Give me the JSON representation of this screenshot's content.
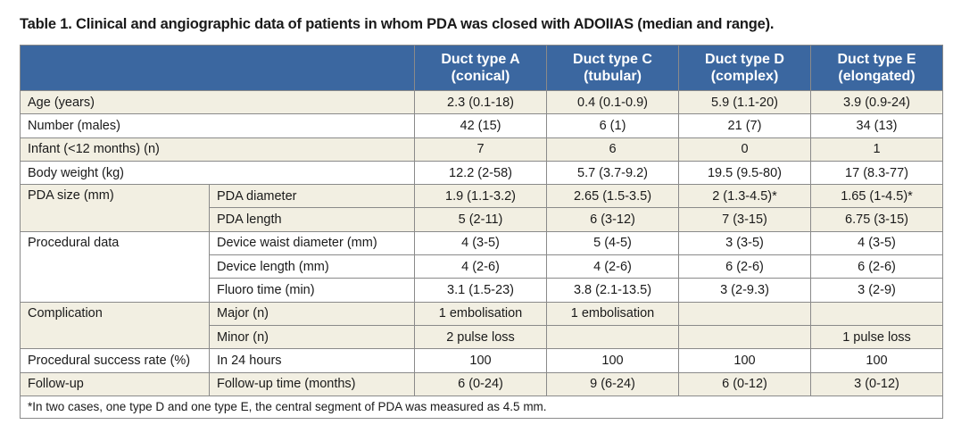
{
  "title": "Table 1. Clinical and angiographic data of patients in whom PDA was closed with ADOIIAS (median and range).",
  "header": {
    "columns": [
      {
        "line1": "Duct type A",
        "line2": "(conical)"
      },
      {
        "line1": "Duct type C",
        "line2": "(tubular)"
      },
      {
        "line1": "Duct type D",
        "line2": "(complex)"
      },
      {
        "line1": "Duct type E",
        "line2": "(elongated)"
      }
    ]
  },
  "rows": {
    "age": {
      "label": "Age (years)",
      "values": [
        "2.3 (0.1-18)",
        "0.4 (0.1-0.9)",
        "5.9 (1.1-20)",
        "3.9 (0.9-24)"
      ]
    },
    "number": {
      "label": "Number (males)",
      "values": [
        "42 (15)",
        "6 (1)",
        "21 (7)",
        "34 (13)"
      ]
    },
    "infant": {
      "label": "Infant (<12 months) (n)",
      "values": [
        "7",
        "6",
        "0",
        "1"
      ]
    },
    "weight": {
      "label": "Body weight (kg)",
      "values": [
        "12.2 (2-58)",
        "5.7 (3.7-9.2)",
        "19.5 (9.5-80)",
        "17 (8.3-77)"
      ]
    },
    "pda_size": {
      "label": "PDA size (mm)",
      "diameter": {
        "label": "PDA diameter",
        "values": [
          "1.9 (1.1-3.2)",
          "2.65 (1.5-3.5)",
          "2 (1.3-4.5)*",
          "1.65 (1-4.5)*"
        ]
      },
      "length": {
        "label": "PDA length",
        "values": [
          "5 (2-11)",
          "6 (3-12)",
          "7 (3-15)",
          "6.75 (3-15)"
        ]
      }
    },
    "procedural": {
      "label": "Procedural data",
      "waist": {
        "label": "Device waist diameter (mm)",
        "values": [
          "4 (3-5)",
          "5 (4-5)",
          "3 (3-5)",
          "4 (3-5)"
        ]
      },
      "device_length": {
        "label": "Device length (mm)",
        "values": [
          "4 (2-6)",
          "4 (2-6)",
          "6 (2-6)",
          "6 (2-6)"
        ]
      },
      "fluoro": {
        "label": "Fluoro time (min)",
        "values": [
          "3.1 (1.5-23)",
          "3.8 (2.1-13.5)",
          "3 (2-9.3)",
          "3 (2-9)"
        ]
      }
    },
    "complication": {
      "label": "Complication",
      "major": {
        "label": "Major (n)",
        "values": [
          "1 embolisation",
          "1 embolisation",
          "",
          ""
        ]
      },
      "minor": {
        "label": "Minor (n)",
        "values": [
          "2 pulse loss",
          "",
          "",
          "1 pulse loss"
        ]
      }
    },
    "success": {
      "label": "Procedural success rate (%)",
      "sub": "In 24 hours",
      "values": [
        "100",
        "100",
        "100",
        "100"
      ]
    },
    "followup": {
      "label": "Follow-up",
      "sub": "Follow-up time (months)",
      "values": [
        "6 (0-24)",
        "9 (6-24)",
        "6 (0-12)",
        "3 (0-12)"
      ]
    }
  },
  "footnote": "*In two cases, one type D and one type E, the central segment of PDA was measured as 4.5 mm."
}
